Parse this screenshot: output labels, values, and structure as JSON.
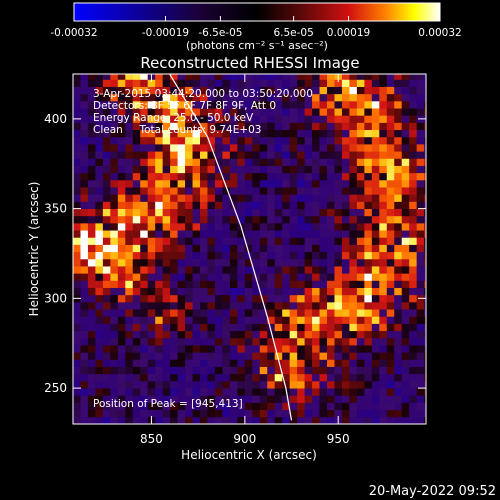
{
  "chart_data": {
    "type": "heatmap",
    "title": "Reconstructed RHESSI Image",
    "xlabel": "Heliocentric X (arcsec)",
    "ylabel": "Heliocentric Y (arcsec)",
    "xlim": [
      808,
      997
    ],
    "ylim": [
      230,
      425
    ],
    "x_ticks": [
      850,
      900,
      950
    ],
    "y_ticks": [
      250,
      300,
      350,
      400
    ],
    "colorbar": {
      "ticks": [
        "-0.00032",
        "-0.00019",
        "-6.5e-05",
        "6.5e-05",
        "0.00019",
        "0.00032"
      ],
      "range": [
        -0.00032,
        0.00032
      ],
      "unit_label": "(photons cm⁻² s⁻¹ asec⁻²)",
      "colors": [
        "#0000ff",
        "#1a0033",
        "#000000",
        "#3a0a0a",
        "#d11010",
        "#ff8000",
        "#ffff00",
        "#ffffff"
      ]
    },
    "annotations": [
      "3-Apr-2015 03:44:20.000 to 03:50:20.000",
      "Detectors: 3F 5F 6F 7F 8F 9F, Att 0",
      "Energy Range: 25.0 - 50.0 keV",
      "Clean     Total counts: 9.74E+03"
    ],
    "peak_label": "Position of Peak = [945,413]",
    "peak": [
      945,
      413
    ],
    "limb_curve": [
      [
        858,
        428
      ],
      [
        880,
        390
      ],
      [
        898,
        340
      ],
      [
        912,
        290
      ],
      [
        922,
        250
      ],
      [
        925,
        232
      ]
    ],
    "emission_bands": [
      {
        "pts": [
          [
            840,
            428
          ],
          [
            872,
            385
          ],
          [
            855,
            350
          ],
          [
            825,
            330
          ]
        ],
        "width": 28,
        "amp": 0.000265
      },
      {
        "pts": [
          [
            950,
            428
          ],
          [
            975,
            380
          ],
          [
            980,
            330
          ],
          [
            965,
            300
          ],
          [
            935,
            285
          ],
          [
            925,
            265
          ]
        ],
        "width": 30,
        "amp": 0.00025
      },
      {
        "pts": [
          [
            815,
            330
          ],
          [
            840,
            305
          ],
          [
            860,
            290
          ]
        ],
        "width": 18,
        "amp": 0.00016
      }
    ],
    "noise_amp": 0.00012,
    "background": -9e-05
  },
  "footer": {
    "timestamp": "20-May-2022 09:52"
  }
}
